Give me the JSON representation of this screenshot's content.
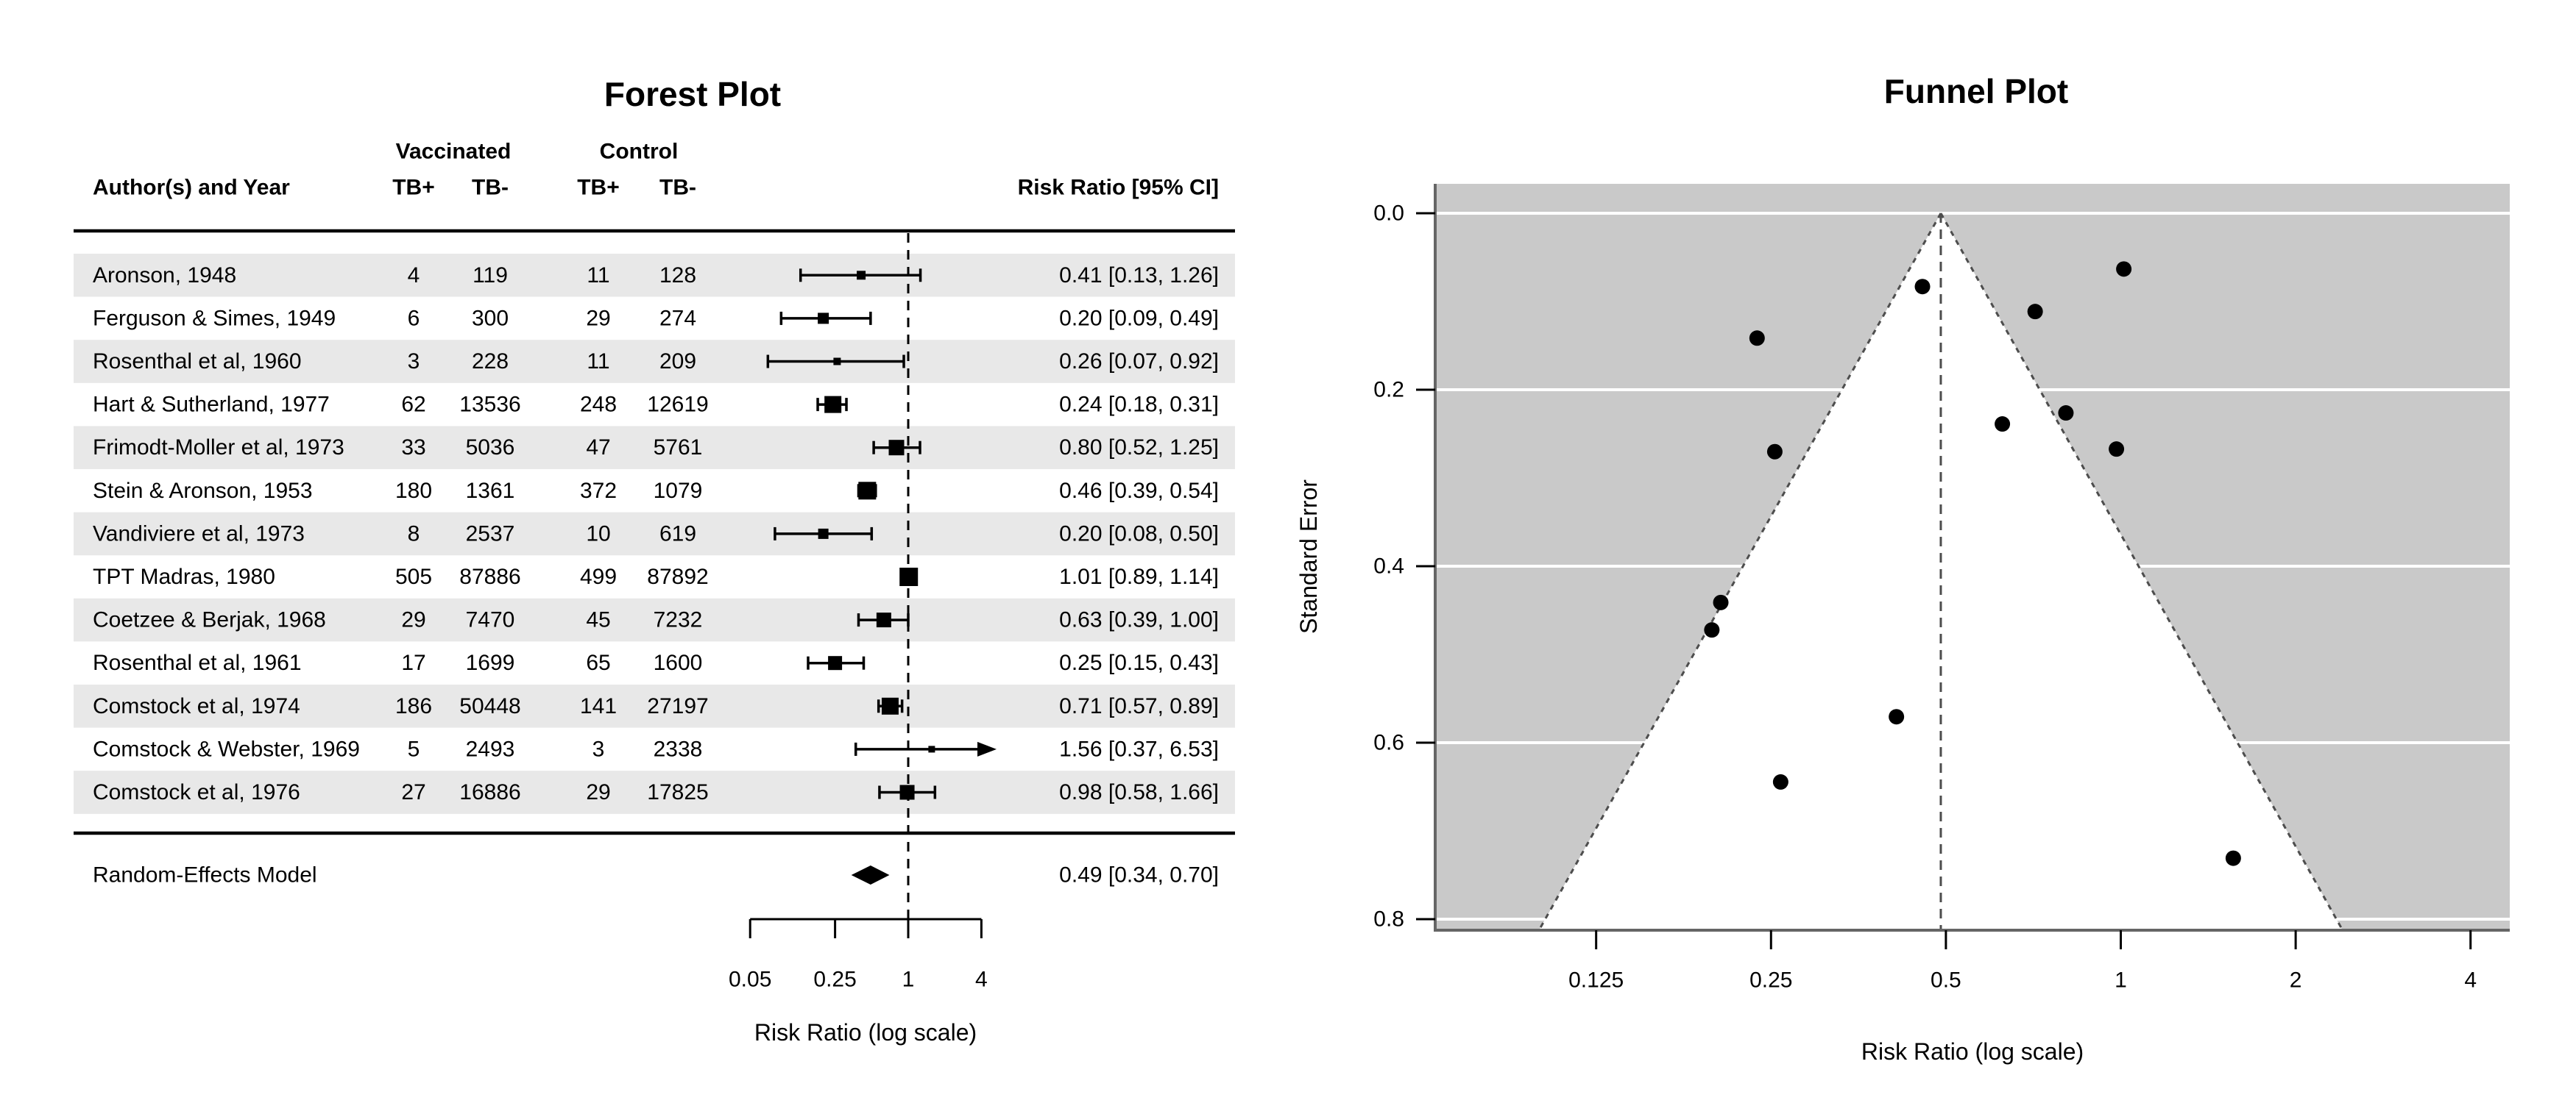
{
  "colors": {
    "row_band": "#e8e8e8",
    "funnel_background": "#c9c9c9",
    "funnel_gridline": "#ffffff",
    "funnel_region": "#ffffff",
    "dashed_line": "#4d4d4d",
    "axis_frame": "#666666",
    "marker": "#000000"
  },
  "chart_data": [
    {
      "type": "forest",
      "title": "Forest Plot",
      "columns": {
        "author": "Author(s) and Year",
        "group1": "Vaccinated",
        "group2": "Control",
        "tb_pos": "TB+",
        "tb_neg": "TB-",
        "effect": "Risk Ratio [95% CI]"
      },
      "studies": [
        {
          "author": "Aronson, 1948",
          "vac_tb_pos": "4",
          "vac_tb_neg": "119",
          "ctl_tb_pos": "11",
          "ctl_tb_neg": "128",
          "rr": 0.41,
          "ci_lb": 0.13,
          "ci_ub": 1.26,
          "ci_label": "0.41 [0.13, 1.26]",
          "log_rr": -0.8893,
          "se": 0.5706,
          "marker_size": 12,
          "shaded": true
        },
        {
          "author": "Ferguson & Simes, 1949",
          "vac_tb_pos": "6",
          "vac_tb_neg": "300",
          "ctl_tb_pos": "29",
          "ctl_tb_neg": "274",
          "rr": 0.2,
          "ci_lb": 0.09,
          "ci_ub": 0.49,
          "ci_label": "0.20 [0.09, 0.49]",
          "log_rr": -1.5854,
          "se": 0.4411,
          "marker_size": 15,
          "shaded": false
        },
        {
          "author": "Rosenthal et al, 1960",
          "vac_tb_pos": "3",
          "vac_tb_neg": "228",
          "ctl_tb_pos": "11",
          "ctl_tb_neg": "209",
          "rr": 0.26,
          "ci_lb": 0.07,
          "ci_ub": 0.92,
          "ci_label": "0.26 [0.07, 0.92]",
          "log_rr": -1.3481,
          "se": 0.6445,
          "marker_size": 10,
          "shaded": true
        },
        {
          "author": "Hart & Sutherland, 1977",
          "vac_tb_pos": "62",
          "vac_tb_neg": "13536",
          "ctl_tb_pos": "248",
          "ctl_tb_neg": "12619",
          "rr": 0.24,
          "ci_lb": 0.18,
          "ci_ub": 0.31,
          "ci_label": "0.24 [0.18, 0.31]",
          "log_rr": -1.4416,
          "se": 0.1415,
          "marker_size": 23,
          "shaded": false
        },
        {
          "author": "Frimodt-Moller et al, 1973",
          "vac_tb_pos": "33",
          "vac_tb_neg": "5036",
          "ctl_tb_pos": "47",
          "ctl_tb_neg": "5761",
          "rr": 0.8,
          "ci_lb": 0.52,
          "ci_ub": 1.25,
          "ci_label": "0.80 [0.52, 1.25]",
          "log_rr": -0.2175,
          "se": 0.2263,
          "marker_size": 21,
          "shaded": true
        },
        {
          "author": "Stein & Aronson, 1953",
          "vac_tb_pos": "180",
          "vac_tb_neg": "1361",
          "ctl_tb_pos": "372",
          "ctl_tb_neg": "1079",
          "rr": 0.46,
          "ci_lb": 0.39,
          "ci_ub": 0.54,
          "ci_label": "0.46 [0.39, 0.54]",
          "log_rr": -0.7861,
          "se": 0.0831,
          "marker_size": 24,
          "shaded": false
        },
        {
          "author": "Vandiviere et al, 1973",
          "vac_tb_pos": "8",
          "vac_tb_neg": "2537",
          "ctl_tb_pos": "10",
          "ctl_tb_neg": "619",
          "rr": 0.2,
          "ci_lb": 0.08,
          "ci_ub": 0.5,
          "ci_label": "0.20 [0.08, 0.50]",
          "log_rr": -1.6209,
          "se": 0.4722,
          "marker_size": 14,
          "shaded": true
        },
        {
          "author": "TPT Madras, 1980",
          "vac_tb_pos": "505",
          "vac_tb_neg": "87886",
          "ctl_tb_pos": "499",
          "ctl_tb_neg": "87892",
          "rr": 1.01,
          "ci_lb": 0.89,
          "ci_ub": 1.14,
          "ci_label": "1.01 [0.89, 1.14]",
          "log_rr": 0.012,
          "se": 0.0632,
          "marker_size": 25,
          "shaded": false
        },
        {
          "author": "Coetzee & Berjak, 1968",
          "vac_tb_pos": "29",
          "vac_tb_neg": "7470",
          "ctl_tb_pos": "45",
          "ctl_tb_neg": "7232",
          "rr": 0.63,
          "ci_lb": 0.39,
          "ci_ub": 1.0,
          "ci_label": "0.63 [0.39, 1.00]",
          "log_rr": -0.4694,
          "se": 0.2388,
          "marker_size": 20,
          "shaded": true
        },
        {
          "author": "Rosenthal et al, 1961",
          "vac_tb_pos": "17",
          "vac_tb_neg": "1699",
          "ctl_tb_pos": "65",
          "ctl_tb_neg": "1600",
          "rr": 0.25,
          "ci_lb": 0.15,
          "ci_ub": 0.43,
          "ci_label": "0.25 [0.15, 0.43]",
          "log_rr": -1.3713,
          "se": 0.2702,
          "marker_size": 19,
          "shaded": false
        },
        {
          "author": "Comstock et al, 1974",
          "vac_tb_pos": "186",
          "vac_tb_neg": "50448",
          "ctl_tb_pos": "141",
          "ctl_tb_neg": "27197",
          "rr": 0.71,
          "ci_lb": 0.57,
          "ci_ub": 0.89,
          "ci_label": "0.71 [0.57, 0.89]",
          "log_rr": -0.3394,
          "se": 0.1114,
          "marker_size": 23,
          "shaded": true
        },
        {
          "author": "Comstock & Webster, 1969",
          "vac_tb_pos": "5",
          "vac_tb_neg": "2493",
          "ctl_tb_pos": "3",
          "ctl_tb_neg": "2338",
          "rr": 1.56,
          "ci_lb": 0.37,
          "ci_ub": 6.53,
          "ci_label": "1.56 [0.37, 6.53]",
          "log_rr": 0.4459,
          "se": 0.7309,
          "marker_size": 9,
          "shaded": false
        },
        {
          "author": "Comstock et al, 1976",
          "vac_tb_pos": "27",
          "vac_tb_neg": "16886",
          "ctl_tb_pos": "29",
          "ctl_tb_neg": "17825",
          "rr": 0.98,
          "ci_lb": 0.58,
          "ci_ub": 1.66,
          "ci_label": "0.98 [0.58, 1.66]",
          "log_rr": -0.0173,
          "se": 0.2672,
          "marker_size": 20,
          "shaded": true
        }
      ],
      "summary": {
        "label": "Random-Effects Model",
        "rr": 0.49,
        "ci_lb": 0.34,
        "ci_ub": 0.7,
        "ci_label": "0.49 [0.34, 0.70]"
      },
      "x_axis": {
        "ticks": [
          0.05,
          0.25,
          1,
          4
        ],
        "tick_labels": [
          "0.05",
          "0.25",
          "1",
          "4"
        ],
        "title": "Risk Ratio (log scale)",
        "ref_line": 1,
        "scale": "log"
      }
    },
    {
      "type": "scatter",
      "title": "Funnel Plot",
      "xlabel": "Risk Ratio (log scale)",
      "ylabel": "Standard Error",
      "x_scale": "log",
      "x_ticks": [
        0.125,
        0.25,
        0.5,
        1,
        2,
        4
      ],
      "x_tick_labels": [
        "0.125",
        "0.25",
        "0.5",
        "1",
        "2",
        "4"
      ],
      "y_ticks": [
        0.0,
        0.2,
        0.4,
        0.6,
        0.8
      ],
      "y_tick_labels": [
        "0.0",
        "0.2",
        "0.4",
        "0.6",
        "0.8"
      ],
      "y_max": 0.8125,
      "center_rr": 0.49,
      "funnel_ci_z": 1.96,
      "points": [
        {
          "study": "Aronson, 1948",
          "rr": 0.41,
          "log_rr": -0.8893,
          "se": 0.5706
        },
        {
          "study": "Ferguson & Simes, 1949",
          "rr": 0.2,
          "log_rr": -1.5854,
          "se": 0.4411
        },
        {
          "study": "Rosenthal et al, 1960",
          "rr": 0.26,
          "log_rr": -1.3481,
          "se": 0.6445
        },
        {
          "study": "Hart & Sutherland, 1977",
          "rr": 0.24,
          "log_rr": -1.4416,
          "se": 0.1415
        },
        {
          "study": "Frimodt-Moller et al, 1973",
          "rr": 0.8,
          "log_rr": -0.2175,
          "se": 0.2263
        },
        {
          "study": "Stein & Aronson, 1953",
          "rr": 0.46,
          "log_rr": -0.7861,
          "se": 0.0831
        },
        {
          "study": "Vandiviere et al, 1973",
          "rr": 0.2,
          "log_rr": -1.6209,
          "se": 0.4722
        },
        {
          "study": "TPT Madras, 1980",
          "rr": 1.01,
          "log_rr": 0.012,
          "se": 0.0632
        },
        {
          "study": "Coetzee & Berjak, 1968",
          "rr": 0.63,
          "log_rr": -0.4694,
          "se": 0.2388
        },
        {
          "study": "Rosenthal et al, 1961",
          "rr": 0.25,
          "log_rr": -1.3713,
          "se": 0.2702
        },
        {
          "study": "Comstock et al, 1974",
          "rr": 0.71,
          "log_rr": -0.3394,
          "se": 0.1114
        },
        {
          "study": "Comstock & Webster, 1969",
          "rr": 1.56,
          "log_rr": 0.4459,
          "se": 0.7309
        },
        {
          "study": "Comstock et al, 1976",
          "rr": 0.98,
          "log_rr": -0.0173,
          "se": 0.2672
        }
      ]
    }
  ]
}
